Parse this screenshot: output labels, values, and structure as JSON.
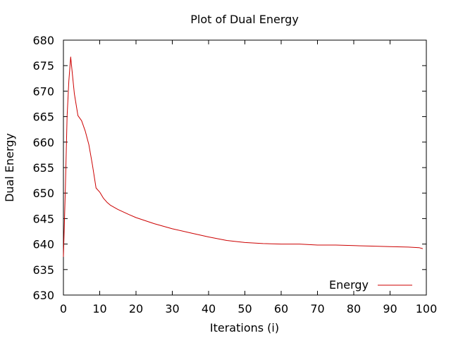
{
  "chart_data": {
    "type": "line",
    "title": "Plot of Dual Energy",
    "xlabel": "Iterations (i)",
    "ylabel": "Dual Energy",
    "xlim": [
      0,
      100
    ],
    "ylim": [
      630,
      680
    ],
    "xticks": [
      0,
      10,
      20,
      30,
      40,
      50,
      60,
      70,
      80,
      90,
      100
    ],
    "yticks": [
      630,
      635,
      640,
      645,
      650,
      655,
      660,
      665,
      670,
      675,
      680
    ],
    "grid": false,
    "legend_position": "bottom-right",
    "series": [
      {
        "name": "Energy",
        "color": "#cc0000",
        "x": [
          0,
          0.5,
          1,
          1.5,
          2,
          3,
          4,
          5,
          6,
          7,
          8,
          9,
          10,
          11,
          12,
          13,
          15,
          18,
          20,
          25,
          30,
          35,
          40,
          45,
          50,
          55,
          60,
          65,
          70,
          75,
          80,
          85,
          90,
          95,
          98,
          99
        ],
        "y": [
          637.5,
          650,
          665,
          672,
          676.7,
          669.5,
          665.2,
          664.2,
          662.2,
          659.5,
          655.5,
          651,
          650.2,
          649,
          648.2,
          647.6,
          646.8,
          645.8,
          645.2,
          644,
          643,
          642.2,
          641.4,
          640.7,
          640.3,
          640.1,
          640,
          640,
          639.8,
          639.8,
          639.7,
          639.6,
          639.5,
          639.4,
          639.3,
          639.1
        ]
      }
    ]
  }
}
